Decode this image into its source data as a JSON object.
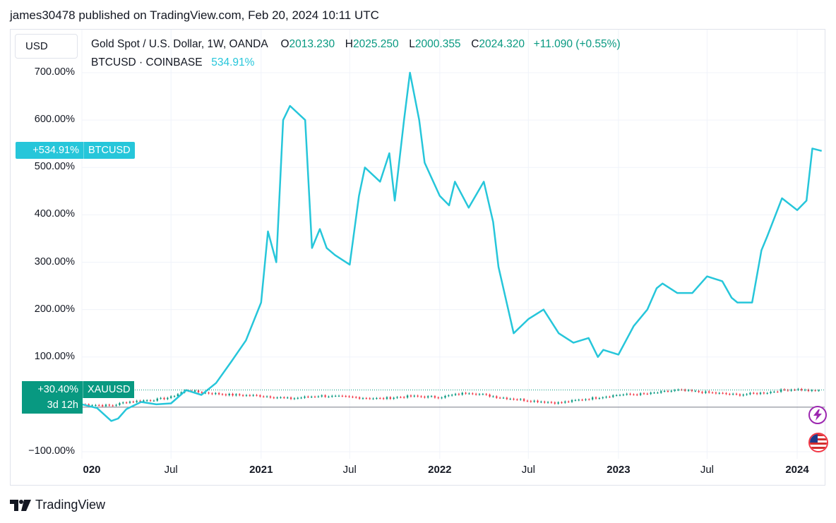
{
  "caption": "james30478 published on TradingView.com, Feb 20, 2024 10:11 UTC",
  "currency_button": "USD",
  "legend": {
    "main_symbol": "Gold Spot / U.S. Dollar, 1W, OANDA",
    "o_label": "O",
    "o_value": "2013.230",
    "h_label": "H",
    "h_value": "2025.250",
    "l_label": "L",
    "l_value": "2000.355",
    "c_label": "C",
    "c_value": "2024.320",
    "change": "+11.090 (+0.55%)",
    "compare_symbol": "BTCUSD · COINBASE",
    "compare_value": "534.91%"
  },
  "badges": {
    "btc_value": "+534.91%",
    "btc_name": "BTCUSD",
    "xau_value": "+30.40%",
    "xau_name": "XAUUSD",
    "countdown": "3d 12h"
  },
  "brand": "TradingView",
  "colors": {
    "btc": "#26c6da",
    "up": "#089981",
    "down": "#f23645",
    "grid": "#f0f3fa"
  },
  "icons": [
    "lightning-icon",
    "us-flag-icon"
  ],
  "chart_data": {
    "type": "line",
    "y_ticks": [
      "700.00%",
      "600.00%",
      "500.00%",
      "400.00%",
      "300.00%",
      "200.00%",
      "100.00%",
      "−100.00%"
    ],
    "y_values": [
      700,
      600,
      500,
      400,
      300,
      200,
      100,
      -100
    ],
    "ylim": [
      -110,
      710
    ],
    "x_ticks": [
      "020",
      "Jul",
      "2021",
      "Jul",
      "2022",
      "Jul",
      "2023",
      "Jul",
      "2024"
    ],
    "x_tick_bold": [
      true,
      false,
      true,
      false,
      true,
      false,
      true,
      false,
      true
    ],
    "x_tick_dates": [
      "2020-01",
      "2020-07",
      "2021-01",
      "2021-07",
      "2022-01",
      "2022-07",
      "2023-01",
      "2023-07",
      "2024-01"
    ],
    "series": [
      {
        "name": "BTCUSD",
        "t": [
          "2020-01",
          "2020-02",
          "2020-03",
          "2020-03-15",
          "2020-04",
          "2020-05",
          "2020-06",
          "2020-07",
          "2020-08",
          "2020-09",
          "2020-10",
          "2020-11",
          "2020-12",
          "2021-01",
          "2021-01-15",
          "2021-02",
          "2021-02-15",
          "2021-03",
          "2021-04",
          "2021-04-15",
          "2021-05",
          "2021-05-15",
          "2021-06",
          "2021-07",
          "2021-07-20",
          "2021-08",
          "2021-09",
          "2021-09-20",
          "2021-10",
          "2021-10-20",
          "2021-11",
          "2021-11-20",
          "2021-12",
          "2022-01",
          "2022-01-20",
          "2022-02",
          "2022-03",
          "2022-04",
          "2022-04-20",
          "2022-05",
          "2022-06",
          "2022-07",
          "2022-08",
          "2022-09",
          "2022-10",
          "2022-11",
          "2022-11-20",
          "2022-12",
          "2023-01",
          "2023-02",
          "2023-03",
          "2023-03-20",
          "2023-04",
          "2023-05",
          "2023-06",
          "2023-07",
          "2023-08",
          "2023-08-20",
          "2023-09",
          "2023-10",
          "2023-10-20",
          "2023-11",
          "2023-12",
          "2024-01",
          "2024-01-20",
          "2024-02",
          "2024-02-20"
        ],
        "values": [
          0,
          -8,
          -35,
          -30,
          -10,
          5,
          0,
          2,
          30,
          20,
          45,
          90,
          135,
          215,
          365,
          300,
          600,
          630,
          600,
          330,
          370,
          330,
          315,
          295,
          440,
          500,
          470,
          530,
          430,
          600,
          700,
          600,
          510,
          440,
          420,
          470,
          415,
          470,
          385,
          290,
          150,
          180,
          200,
          150,
          130,
          140,
          100,
          115,
          105,
          165,
          200,
          245,
          255,
          235,
          235,
          270,
          260,
          225,
          215,
          215,
          325,
          355,
          435,
          410,
          430,
          540,
          535
        ]
      },
      {
        "name": "XAUUSD",
        "t": [
          "2020-01",
          "2020-03",
          "2020-04",
          "2020-06",
          "2020-07",
          "2020-08",
          "2020-09",
          "2020-11",
          "2021-01",
          "2021-03",
          "2021-05",
          "2021-07",
          "2021-09",
          "2021-11",
          "2022-01",
          "2022-03",
          "2022-05",
          "2022-07",
          "2022-09",
          "2022-11",
          "2023-01",
          "2023-03",
          "2023-05",
          "2023-07",
          "2023-09",
          "2023-11",
          "2023-12",
          "2024-01",
          "2024-02",
          "2024-02-20"
        ],
        "values": [
          0,
          -3,
          5,
          10,
          15,
          30,
          25,
          20,
          18,
          12,
          18,
          15,
          12,
          17,
          15,
          25,
          15,
          8,
          3,
          12,
          20,
          22,
          30,
          25,
          20,
          25,
          30,
          32,
          28,
          30.4
        ]
      }
    ]
  }
}
